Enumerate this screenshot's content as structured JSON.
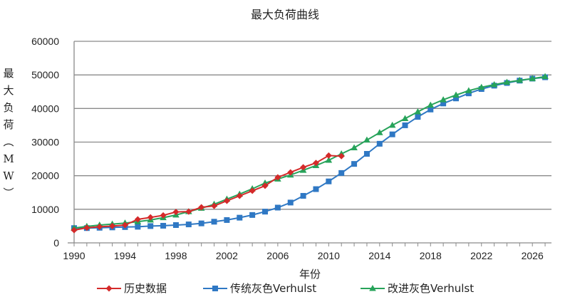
{
  "chart_data": {
    "type": "line",
    "title": "最大负荷曲线",
    "xlabel": "年份",
    "ylabel": "最大负荷（MW）",
    "xlim": [
      1990,
      2027.5
    ],
    "ylim": [
      0,
      60000
    ],
    "x_ticks": [
      "1990",
      "1994",
      "1998",
      "2002",
      "2006",
      "2010",
      "2014",
      "2018",
      "2022",
      "2026"
    ],
    "y_ticks": [
      "0",
      "10000",
      "20000",
      "30000",
      "40000",
      "50000",
      "60000"
    ],
    "grid": true,
    "legend_position": "bottom",
    "series": [
      {
        "name": "历史数据",
        "color": "#d42a2a",
        "marker": "diamond",
        "x": [
          1990,
          1991,
          1992,
          1993,
          1994,
          1995,
          1996,
          1997,
          1998,
          1999,
          2000,
          2001,
          2002,
          2003,
          2004,
          2005,
          2006,
          2007,
          2008,
          2009,
          2010,
          2011
        ],
        "values": [
          3800,
          4500,
          4800,
          5000,
          5300,
          7000,
          7600,
          8200,
          9200,
          9300,
          10600,
          11000,
          12500,
          14000,
          15500,
          17000,
          19500,
          21000,
          22500,
          23800,
          26000,
          25800
        ]
      },
      {
        "name": "传统灰色Verhulst",
        "color": "#2f78c4",
        "marker": "square",
        "x": [
          1990,
          1991,
          1992,
          1993,
          1994,
          1995,
          1996,
          1997,
          1998,
          1999,
          2000,
          2001,
          2002,
          2003,
          2004,
          2005,
          2006,
          2007,
          2008,
          2009,
          2010,
          2011,
          2012,
          2013,
          2014,
          2015,
          2016,
          2017,
          2018,
          2019,
          2020,
          2021,
          2022,
          2023,
          2024,
          2025,
          2026,
          2027
        ],
        "values": [
          4400,
          4400,
          4500,
          4600,
          4700,
          4800,
          5000,
          5100,
          5300,
          5500,
          5800,
          6300,
          6800,
          7500,
          8300,
          9300,
          10500,
          12000,
          14000,
          16000,
          18300,
          20800,
          23500,
          26500,
          29500,
          32300,
          35000,
          37500,
          39700,
          41500,
          43000,
          44500,
          45800,
          46800,
          47600,
          48300,
          48900,
          49300
        ]
      },
      {
        "name": "改进灰色Verhulst",
        "color": "#27a35a",
        "marker": "triangle",
        "x": [
          1990,
          1991,
          1992,
          1993,
          1994,
          1995,
          1996,
          1997,
          1998,
          1999,
          2000,
          2001,
          2002,
          2003,
          2004,
          2005,
          2006,
          2007,
          2008,
          2009,
          2010,
          2011,
          2012,
          2013,
          2014,
          2015,
          2016,
          2017,
          2018,
          2019,
          2020,
          2021,
          2022,
          2023,
          2024,
          2025,
          2026,
          2027
        ],
        "values": [
          4400,
          4900,
          5300,
          5600,
          5900,
          6300,
          6800,
          7500,
          8300,
          9300,
          10300,
          11500,
          13000,
          14500,
          16100,
          17800,
          19000,
          20200,
          21600,
          23000,
          24600,
          26500,
          28300,
          30600,
          32800,
          35000,
          37000,
          39000,
          41000,
          42600,
          44000,
          45300,
          46300,
          47100,
          47800,
          48400,
          48900,
          49500
        ]
      }
    ]
  }
}
